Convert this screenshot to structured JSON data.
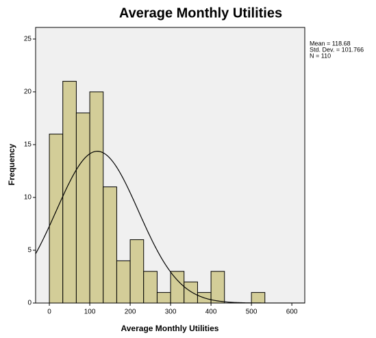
{
  "chart_data": {
    "type": "histogram",
    "title": "Average Monthly Utilities",
    "x_label": "Average Monthly Utilities",
    "y_label": "Frequency",
    "bins": [
      0,
      33.3,
      66.7,
      100,
      133.3,
      166.7,
      200,
      233.3,
      266.7,
      300,
      333.3,
      366.7,
      400,
      433.3,
      466.7,
      500,
      533.3
    ],
    "counts": [
      16,
      21,
      18,
      20,
      11,
      4,
      6,
      3,
      1,
      3,
      2,
      1,
      3,
      0,
      0,
      1
    ],
    "color": "#d3cd98",
    "xlim": [
      -34,
      632
    ],
    "xticks": [
      0,
      100,
      200,
      300,
      400,
      500,
      600
    ],
    "ylim": [
      0,
      26.1
    ],
    "yticks": [
      0,
      5,
      10,
      15,
      20,
      25
    ],
    "normal_curve": {
      "mean": 118.68,
      "sd": 101.766,
      "n": 110
    },
    "stats_text": [
      "Mean = 118.68",
      "Std. Dev. = 101.766",
      "N = 110"
    ]
  }
}
